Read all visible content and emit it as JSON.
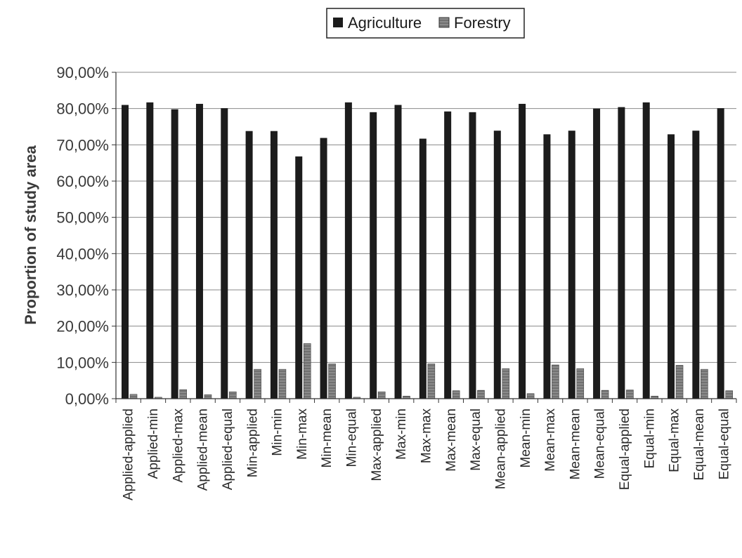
{
  "chart_data": {
    "type": "bar",
    "title": "",
    "xlabel": "",
    "ylabel": "Proportion of study area",
    "ylim": [
      0,
      90
    ],
    "yticks": [
      "0,00%",
      "10,00%",
      "20,00%",
      "30,00%",
      "40,00%",
      "50,00%",
      "60,00%",
      "70,00%",
      "80,00%",
      "90,00%"
    ],
    "grid": true,
    "legend_position": "top",
    "categories": [
      "Applied-applied",
      "Applied-min",
      "Applied-max",
      "Applied-mean",
      "Applied-equal",
      "Min-applied",
      "Min-min",
      "Min-max",
      "Min-mean",
      "Min-equal",
      "Max-applied",
      "Max-min",
      "Max-max",
      "Max-mean",
      "Max-equal",
      "Mean-applied",
      "Mean-min",
      "Mean-max",
      "Mean-mean",
      "Mean-equal",
      "Equal-applied",
      "Equal-min",
      "Equal-max",
      "Equal-mean",
      "Equal-equal"
    ],
    "series": [
      {
        "name": "Agriculture",
        "color": "#1c1c1c",
        "values": [
          81.0,
          81.7,
          79.8,
          81.3,
          80.1,
          73.8,
          73.8,
          66.8,
          71.9,
          81.7,
          79.0,
          81.0,
          71.7,
          79.2,
          79.0,
          73.9,
          81.3,
          72.9,
          73.9,
          80.0,
          80.4,
          81.7,
          72.9,
          73.9,
          80.1
        ]
      },
      {
        "name": "Forestry",
        "color": "#8a8a8a",
        "values": [
          1.2,
          0.4,
          2.5,
          1.1,
          1.9,
          8.1,
          8.1,
          15.2,
          9.6,
          0.4,
          1.9,
          0.7,
          9.6,
          2.2,
          2.3,
          8.3,
          1.4,
          9.3,
          8.3,
          2.3,
          2.4,
          0.7,
          9.2,
          8.1,
          2.2
        ]
      }
    ]
  }
}
